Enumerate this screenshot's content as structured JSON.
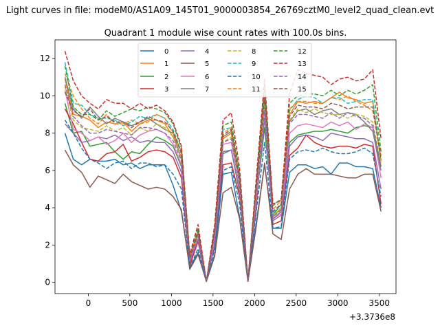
{
  "suptitle": "Light curves in file: modeM0/AS1A09_145T01_9000003854_26769cztM0_level2_quad_clean.evt",
  "chart_data": {
    "type": "line",
    "title": "Quadrant 1 module wise count rates with 100.0s bins.",
    "xlabel": "",
    "ylabel": "",
    "x_offset_label": "+3.3736e8",
    "xlim": [
      -400,
      3700
    ],
    "ylim": [
      -0.6,
      13.0
    ],
    "xticks": [
      0,
      500,
      1000,
      1500,
      2000,
      2500,
      3000,
      3500
    ],
    "yticks": [
      0,
      2,
      4,
      6,
      8,
      10,
      12
    ],
    "legend": "upper-center",
    "x": [
      -280,
      -180,
      -80,
      20,
      120,
      220,
      320,
      420,
      520,
      620,
      720,
      820,
      920,
      1020,
      1120,
      1220,
      1320,
      1420,
      1520,
      1620,
      1720,
      1820,
      1920,
      2020,
      2120,
      2220,
      2320,
      2420,
      2520,
      2620,
      2720,
      2820,
      2920,
      3020,
      3120,
      3220,
      3320,
      3420,
      3520
    ],
    "series": [
      {
        "name": "0",
        "color": "#1f77b4",
        "dash": false,
        "values": [
          8.0,
          6.6,
          6.3,
          6.6,
          6.5,
          6.5,
          6.6,
          6.3,
          6.4,
          6.1,
          6.3,
          6.3,
          6.3,
          5.2,
          3.8,
          0.8,
          1.6,
          0.05,
          1.5,
          5.8,
          5.9,
          3.5,
          0.1,
          3.2,
          6.3,
          2.9,
          2.9,
          5.9,
          6.3,
          6.3,
          6.1,
          6.2,
          5.8,
          6.4,
          6.4,
          6.2,
          6.2,
          6.1,
          4.0
        ]
      },
      {
        "name": "1",
        "color": "#ff7f0e",
        "dash": false,
        "values": [
          10.9,
          9.0,
          8.9,
          8.7,
          8.3,
          8.6,
          8.5,
          8.6,
          8.1,
          8.5,
          8.7,
          8.7,
          8.5,
          7.8,
          6.7,
          1.4,
          2.7,
          0.1,
          2.8,
          7.7,
          8.0,
          5.5,
          0.1,
          5.0,
          9.9,
          3.5,
          4.0,
          9.0,
          9.7,
          9.6,
          9.7,
          9.6,
          9.9,
          10.2,
          9.9,
          9.8,
          9.6,
          9.7,
          6.5
        ]
      },
      {
        "name": "2",
        "color": "#2ca02c",
        "dash": false,
        "values": [
          9.6,
          8.0,
          8.1,
          7.3,
          7.4,
          7.5,
          7.0,
          6.6,
          7.0,
          6.9,
          7.4,
          7.8,
          7.6,
          7.3,
          6.2,
          1.0,
          2.2,
          0.1,
          2.2,
          6.9,
          7.1,
          4.8,
          0.1,
          4.4,
          8.3,
          3.6,
          4.2,
          7.5,
          7.9,
          8.0,
          8.1,
          8.1,
          8.2,
          8.1,
          8.0,
          8.3,
          8.4,
          8.3,
          6.2
        ]
      },
      {
        "name": "3",
        "color": "#d62728",
        "dash": false,
        "values": [
          9.3,
          8.5,
          7.5,
          6.6,
          6.5,
          6.9,
          7.0,
          7.4,
          6.5,
          6.7,
          7.0,
          7.1,
          7.0,
          6.7,
          5.6,
          0.9,
          2.2,
          0.05,
          2.0,
          6.3,
          6.4,
          4.6,
          0.05,
          4.0,
          9.7,
          3.1,
          3.3,
          6.8,
          7.2,
          7.9,
          7.5,
          7.3,
          7.2,
          7.3,
          7.3,
          7.2,
          7.4,
          7.3,
          4.2
        ]
      },
      {
        "name": "4",
        "color": "#9467bd",
        "dash": false,
        "values": [
          8.5,
          8.0,
          7.5,
          7.6,
          7.8,
          7.7,
          7.9,
          7.6,
          7.8,
          7.5,
          7.6,
          7.5,
          7.5,
          7.0,
          5.9,
          1.1,
          2.3,
          0.05,
          2.1,
          7.0,
          7.1,
          4.9,
          0.1,
          4.3,
          8.8,
          3.3,
          3.6,
          7.3,
          7.8,
          7.9,
          7.8,
          7.6,
          8.0,
          7.9,
          7.8,
          7.7,
          7.7,
          7.5,
          5.0
        ]
      },
      {
        "name": "5",
        "color": "#8c564b",
        "dash": false,
        "values": [
          7.1,
          6.3,
          5.9,
          5.1,
          5.7,
          5.5,
          5.3,
          5.8,
          5.4,
          5.2,
          5.0,
          5.1,
          5.0,
          4.6,
          3.9,
          0.7,
          1.5,
          0.05,
          1.4,
          4.8,
          5.1,
          3.4,
          0.05,
          3.0,
          6.4,
          2.6,
          2.3,
          5.0,
          5.8,
          6.1,
          5.8,
          5.8,
          5.8,
          5.7,
          5.6,
          5.6,
          5.8,
          5.8,
          3.8
        ]
      },
      {
        "name": "6",
        "color": "#e377c2",
        "dash": false,
        "values": [
          10.3,
          8.2,
          8.0,
          7.6,
          7.8,
          7.4,
          7.6,
          8.0,
          7.5,
          7.9,
          8.1,
          8.2,
          8.0,
          7.4,
          6.3,
          1.2,
          2.5,
          0.05,
          2.4,
          7.4,
          7.5,
          5.2,
          0.1,
          4.6,
          9.3,
          3.4,
          3.7,
          8.0,
          8.4,
          8.5,
          8.4,
          8.3,
          8.6,
          8.4,
          8.6,
          8.2,
          8.5,
          8.3,
          5.6
        ]
      },
      {
        "name": "7",
        "color": "#7f7f7f",
        "dash": false,
        "values": [
          11.0,
          9.3,
          8.8,
          9.4,
          8.9,
          8.5,
          8.8,
          8.6,
          8.4,
          8.6,
          8.8,
          8.5,
          8.2,
          8.0,
          6.6,
          1.3,
          2.6,
          0.05,
          2.6,
          7.8,
          8.1,
          5.4,
          0.1,
          4.9,
          9.7,
          3.4,
          3.8,
          8.6,
          9.2,
          9.3,
          9.0,
          9.2,
          9.3,
          9.0,
          9.1,
          9.0,
          8.6,
          8.1,
          6.0
        ]
      },
      {
        "name": "8",
        "color": "#bcbd22",
        "dash": true,
        "values": [
          10.5,
          8.7,
          8.3,
          8.2,
          8.1,
          8.4,
          8.1,
          8.3,
          7.9,
          8.3,
          8.1,
          8.5,
          8.3,
          7.8,
          6.6,
          1.2,
          2.6,
          0.05,
          2.5,
          7.5,
          7.8,
          5.2,
          0.1,
          4.8,
          9.5,
          3.6,
          4.0,
          8.7,
          9.3,
          9.1,
          9.3,
          9.1,
          9.0,
          9.0,
          8.8,
          9.0,
          8.9,
          8.6,
          6.4
        ]
      },
      {
        "name": "9",
        "color": "#17becf",
        "dash": true,
        "values": [
          11.8,
          9.6,
          9.5,
          9.0,
          8.8,
          8.8,
          8.7,
          8.4,
          8.6,
          8.9,
          8.8,
          9.0,
          8.8,
          8.2,
          7.0,
          1.3,
          2.8,
          0.05,
          2.8,
          8.2,
          8.3,
          5.6,
          0.1,
          5.2,
          10.4,
          3.7,
          4.2,
          9.2,
          9.8,
          10.0,
          9.9,
          9.6,
          9.9,
          9.9,
          9.6,
          9.7,
          9.8,
          9.8,
          6.6
        ]
      },
      {
        "name": "10",
        "color": "#1f77b4",
        "dash": true,
        "values": [
          8.7,
          8.0,
          7.2,
          6.6,
          6.4,
          6.1,
          6.4,
          6.5,
          6.1,
          6.4,
          6.4,
          6.2,
          6.3,
          5.8,
          5.0,
          0.8,
          1.8,
          0.05,
          1.8,
          6.0,
          6.2,
          4.2,
          0.05,
          3.8,
          7.5,
          2.9,
          3.0,
          6.6,
          7.0,
          7.1,
          7.0,
          7.2,
          7.0,
          6.9,
          6.9,
          7.0,
          7.2,
          6.9,
          4.6
        ]
      },
      {
        "name": "11",
        "color": "#ff7f0e",
        "dash": true,
        "values": [
          11.2,
          10.0,
          9.3,
          8.8,
          8.5,
          9.0,
          8.5,
          8.5,
          8.7,
          8.5,
          8.6,
          9.0,
          8.8,
          8.0,
          7.0,
          1.3,
          2.7,
          0.05,
          2.7,
          8.0,
          8.3,
          5.6,
          0.1,
          5.2,
          10.0,
          3.9,
          4.4,
          9.3,
          9.7,
          9.7,
          9.6,
          9.6,
          9.9,
          9.8,
          10.0,
          9.7,
          9.5,
          9.2,
          6.8
        ]
      },
      {
        "name": "12",
        "color": "#2ca02c",
        "dash": true,
        "values": [
          11.6,
          9.4,
          9.0,
          9.0,
          8.7,
          9.2,
          8.9,
          9.1,
          9.3,
          9.2,
          9.4,
          9.3,
          9.1,
          8.5,
          7.2,
          1.4,
          2.9,
          0.05,
          2.9,
          8.4,
          8.6,
          5.8,
          0.1,
          5.3,
          10.6,
          4.1,
          4.5,
          9.6,
          10.0,
          10.1,
          10.1,
          10.0,
          10.3,
          10.0,
          10.3,
          10.1,
          10.3,
          10.6,
          7.0
        ]
      },
      {
        "name": "13",
        "color": "#d62728",
        "dash": true,
        "values": [
          12.4,
          10.8,
          10.0,
          9.6,
          9.3,
          9.8,
          9.6,
          9.6,
          9.3,
          9.6,
          9.3,
          9.5,
          9.2,
          8.6,
          7.3,
          1.5,
          3.1,
          0.05,
          3.1,
          8.7,
          9.1,
          6.1,
          0.1,
          5.6,
          10.9,
          4.2,
          4.4,
          10.1,
          11.4,
          11.2,
          11.1,
          11.0,
          10.6,
          10.9,
          11.0,
          10.8,
          10.9,
          11.4,
          7.7
        ]
      },
      {
        "name": "14",
        "color": "#9467bd",
        "dash": true,
        "values": [
          10.6,
          8.9,
          8.4,
          8.0,
          8.0,
          8.2,
          8.1,
          8.0,
          7.9,
          8.3,
          8.3,
          8.2,
          8.0,
          7.6,
          6.5,
          1.2,
          2.5,
          0.05,
          2.5,
          7.5,
          7.7,
          5.2,
          0.1,
          4.8,
          9.2,
          3.5,
          3.9,
          8.5,
          9.0,
          9.0,
          8.9,
          8.8,
          9.1,
          8.8,
          9.1,
          8.9,
          8.8,
          8.4,
          6.2
        ]
      },
      {
        "name": "15",
        "color": "#8c564b",
        "dash": true,
        "values": [
          10.2,
          9.2,
          8.9,
          9.3,
          8.7,
          8.9,
          8.6,
          8.6,
          8.3,
          8.6,
          8.9,
          8.7,
          8.6,
          8.1,
          6.9,
          1.3,
          2.7,
          0.05,
          2.7,
          7.9,
          8.2,
          5.5,
          0.1,
          5.1,
          9.9,
          3.8,
          4.2,
          8.9,
          9.5,
          9.4,
          9.4,
          9.3,
          9.6,
          9.5,
          9.3,
          9.4,
          9.4,
          9.4,
          6.6
        ]
      }
    ]
  }
}
